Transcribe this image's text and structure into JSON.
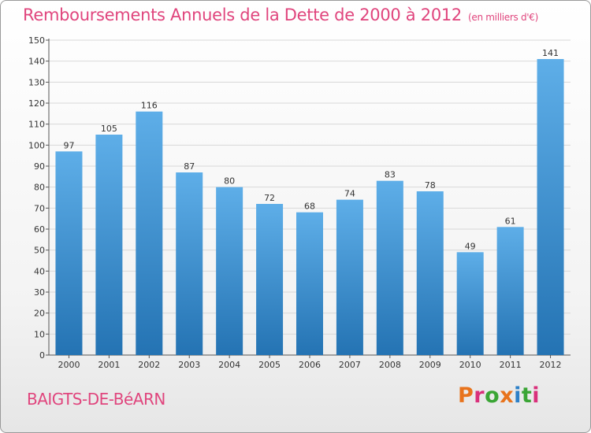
{
  "chart_title": {
    "main": "Remboursements Annuels de la Dette de 2000 à 2012",
    "unit": "(en milliers d'€)"
  },
  "commune_name": "BAIGTS-DE-BéARN",
  "logo": {
    "text": "Proxiti",
    "letter_colors": [
      "#e8731c",
      "#d9307b",
      "#3aa535",
      "#e8731c",
      "#2d80c8",
      "#3aa535",
      "#d9307b"
    ]
  },
  "colors": {
    "bar_top": "#5eaee8",
    "bar_bottom": "#2473b3",
    "text_pink": "#e0457d",
    "grid": "#d8d8d8"
  },
  "chart_data": {
    "type": "bar",
    "title": "Remboursements Annuels de la Dette de 2000 à 2012",
    "subtitle": "(en milliers d'€)",
    "xlabel": "",
    "ylabel": "",
    "ylim": [
      0,
      150
    ],
    "ytick_step": 10,
    "grid": true,
    "legend": "none",
    "categories": [
      "2000",
      "2001",
      "2002",
      "2003",
      "2004",
      "2005",
      "2006",
      "2007",
      "2008",
      "2009",
      "2010",
      "2011",
      "2012"
    ],
    "values": [
      97,
      105,
      116,
      87,
      80,
      72,
      68,
      74,
      83,
      78,
      49,
      61,
      141
    ]
  }
}
